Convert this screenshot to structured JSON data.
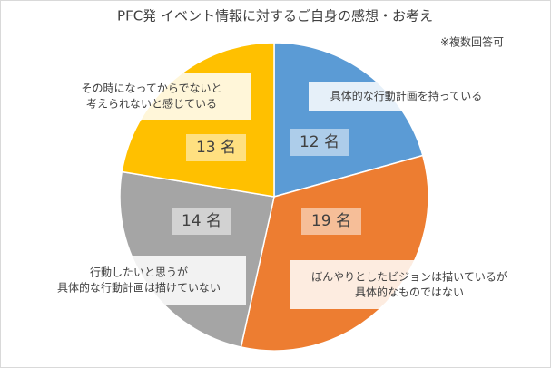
{
  "chart_data": {
    "type": "pie",
    "title": "PFC発 イベント情報に対するご自身の感想・お考え",
    "subtitle": "※複数回答可",
    "categories": [
      "具体的な行動計画を持っている",
      "ぼんやりとしたビジョンは描いているが\n具体的なものではない",
      "行動したいと思うが\n具体的な行動計画は描けていない",
      "その時になってからでないと\n考えられないと感じている"
    ],
    "values": [
      12,
      19,
      14,
      13
    ],
    "value_labels": [
      "12 名",
      "19 名",
      "14 名",
      "13 名"
    ],
    "colors": [
      "#5b9bd5",
      "#ed7d31",
      "#a5a5a5",
      "#ffc000"
    ]
  }
}
